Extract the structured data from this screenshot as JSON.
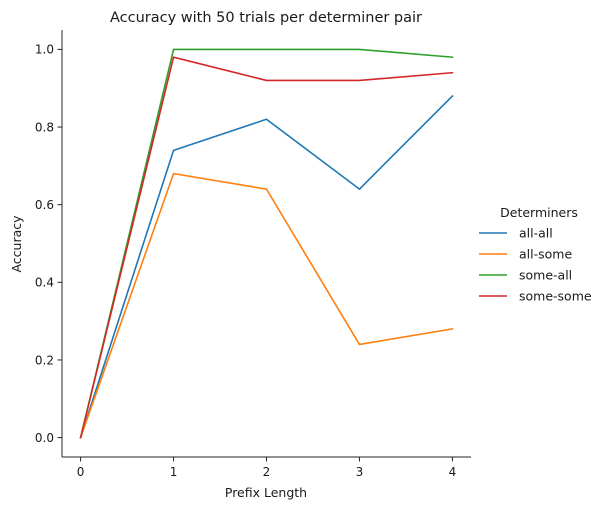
{
  "chart_data": {
    "type": "line",
    "title": "Accuracy with 50 trials per determiner pair",
    "xlabel": "Prefix Length",
    "ylabel": "Accuracy",
    "x": [
      0,
      1,
      2,
      3,
      4
    ],
    "xlim": [
      -0.2,
      4.2
    ],
    "ylim": [
      -0.05,
      1.05
    ],
    "xticks": [
      0,
      1,
      2,
      3,
      4
    ],
    "yticks": [
      0.0,
      0.2,
      0.4,
      0.6,
      0.8,
      1.0
    ],
    "ytick_labels": [
      "0.0",
      "0.2",
      "0.4",
      "0.6",
      "0.8",
      "1.0"
    ],
    "grid": false,
    "legend": {
      "title": "Determiners",
      "placement": "right-outside"
    },
    "series": [
      {
        "name": "all-all",
        "color": "#1f77b4",
        "values": [
          0.0,
          0.74,
          0.82,
          0.64,
          0.88
        ]
      },
      {
        "name": "all-some",
        "color": "#ff7f0e",
        "values": [
          0.0,
          0.68,
          0.64,
          0.24,
          0.28
        ]
      },
      {
        "name": "some-all",
        "color": "#2ca02c",
        "values": [
          0.0,
          1.0,
          1.0,
          1.0,
          0.98
        ]
      },
      {
        "name": "some-some",
        "color": "#d62728",
        "values": [
          0.0,
          0.98,
          0.92,
          0.92,
          0.94
        ]
      }
    ]
  }
}
